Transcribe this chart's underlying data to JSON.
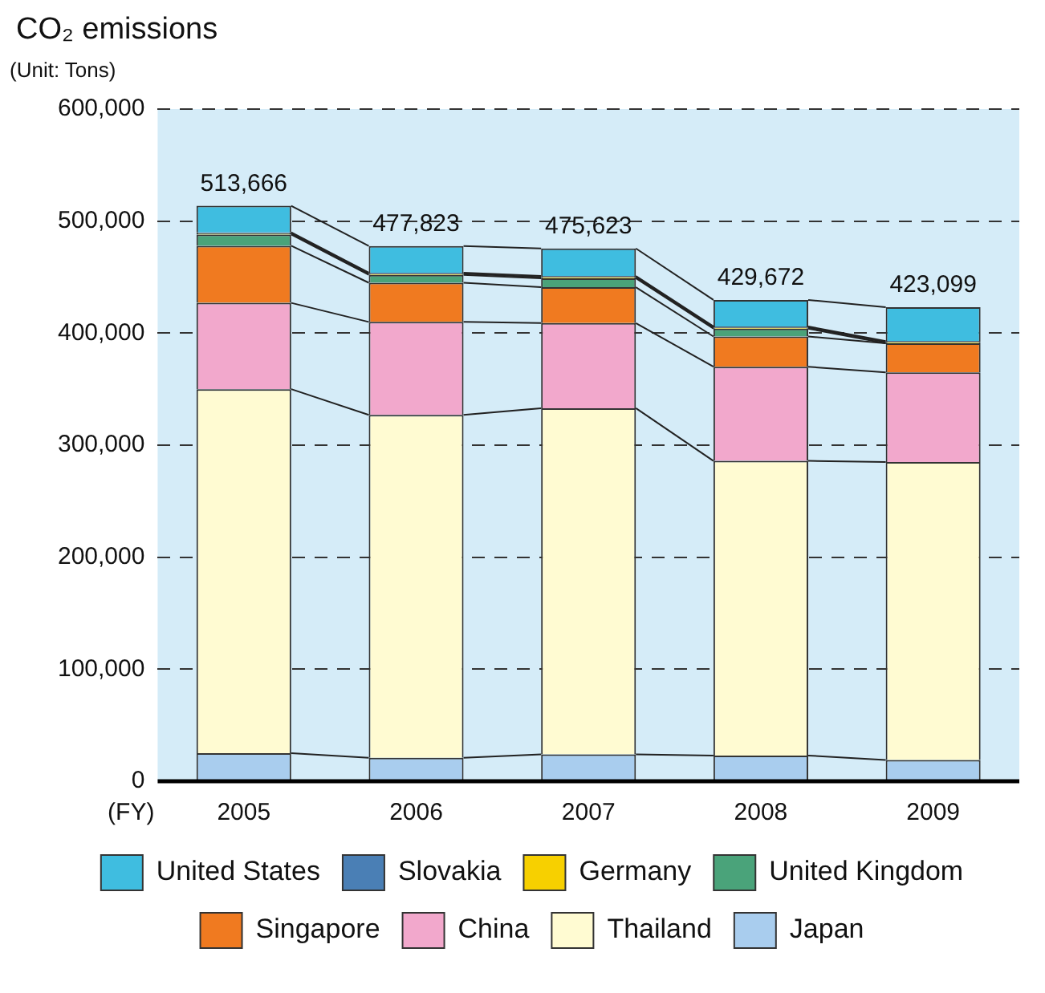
{
  "chart_data": {
    "type": "bar",
    "title": "CO₂ emissions",
    "subtitle": "(Unit: Tons)",
    "xlabel": "(FY)",
    "stacked": true,
    "categories": [
      "2005",
      "2006",
      "2007",
      "2008",
      "2009"
    ],
    "series": [
      {
        "name": "Japan",
        "color": "#a9cdee",
        "values": [
          25000,
          21000,
          24000,
          23000,
          19000
        ]
      },
      {
        "name": "Thailand",
        "color": "#fffbd2",
        "values": [
          325000,
          306000,
          309000,
          263000,
          266000
        ]
      },
      {
        "name": "China",
        "color": "#f2a8cc",
        "values": [
          77000,
          83000,
          76000,
          84000,
          80000
        ]
      },
      {
        "name": "Singapore",
        "color": "#f07a20",
        "values": [
          51000,
          35000,
          32000,
          27000,
          26000
        ]
      },
      {
        "name": "United Kingdom",
        "color": "#4aa37a",
        "values": [
          10000,
          7000,
          8000,
          7000,
          0
        ]
      },
      {
        "name": "Germany",
        "color": "#f7d000",
        "values": [
          1000,
          1000,
          1000,
          1000,
          1000
        ]
      },
      {
        "name": "Slovakia",
        "color": "#4a7fb5",
        "values": [
          1000,
          1000,
          1000,
          1000,
          1000
        ]
      },
      {
        "name": "United States",
        "color": "#3fbde0",
        "values": [
          23666,
          23823,
          24623,
          23672,
          30099
        ]
      }
    ],
    "totals": [
      "513,666",
      "477,823",
      "475,623",
      "429,672",
      "423,099"
    ],
    "ylim": [
      0,
      600000
    ],
    "yticks": [
      0,
      {
        "value": 100000,
        "label": "100,000"
      },
      {
        "value": 200000,
        "label": "200,000"
      },
      {
        "value": 300000,
        "label": "300,000"
      },
      {
        "value": 400000,
        "label": "400,000"
      },
      {
        "value": 500000,
        "label": "500,000"
      },
      {
        "value": 600000,
        "label": "600,000"
      }
    ],
    "grid": "y",
    "legend": "bottom"
  }
}
